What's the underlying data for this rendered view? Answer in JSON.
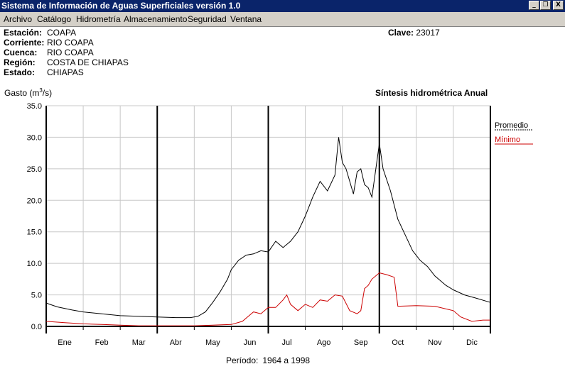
{
  "window": {
    "title": "Sistema de Información de Aguas Superficiales  versión 1.0",
    "minimize": "_",
    "restore": "❐",
    "close": "X"
  },
  "menu": [
    "Archivo",
    "Catálogo",
    "Hidrometría",
    "Almacenamiento",
    "Seguridad",
    "Ventana"
  ],
  "station": {
    "rows": [
      {
        "label": "Estación:",
        "value": "COAPA"
      },
      {
        "label": "Corriente:",
        "value": "RIO COAPA"
      },
      {
        "label": "Cuenca:",
        "value": "RIO COAPA"
      },
      {
        "label": "Región:",
        "value": "COSTA DE CHIAPAS"
      },
      {
        "label": "Estado:",
        "value": "CHIAPAS"
      }
    ],
    "clave_label": "Clave:",
    "clave_value": "23017"
  },
  "periodo": {
    "label": "Período:",
    "value": "1964 a 1998"
  },
  "chart_data": {
    "type": "line",
    "title": "Síntesis hidrométrica   Anual",
    "ylabel_main": "Gasto (m",
    "ylabel_sup": "3",
    "ylabel_end": "/s)",
    "ylim": [
      0,
      35
    ],
    "yticks": [
      "0.0",
      "5.0",
      "10.0",
      "15.0",
      "20.0",
      "25.0",
      "30.0",
      "35.0"
    ],
    "categories": [
      "Ene",
      "Feb",
      "Mar",
      "Abr",
      "May",
      "Jun",
      "Jul",
      "Ago",
      "Sep",
      "Oct",
      "Nov",
      "Dic"
    ],
    "grid": true,
    "legend_position": "right",
    "series": [
      {
        "name": "Promedio",
        "color": "#000000",
        "x": [
          0,
          0.3,
          0.7,
          1,
          1.5,
          2,
          2.5,
          3,
          3.5,
          3.9,
          4.1,
          4.3,
          4.5,
          4.7,
          4.9,
          5,
          5.2,
          5.4,
          5.6,
          5.8,
          6,
          6.2,
          6.4,
          6.6,
          6.8,
          7,
          7.2,
          7.4,
          7.6,
          7.8,
          7.9,
          8.0,
          8.1,
          8.2,
          8.3,
          8.4,
          8.5,
          8.6,
          8.7,
          8.8,
          9,
          9.1,
          9.3,
          9.5,
          9.7,
          9.9,
          10.1,
          10.3,
          10.5,
          10.8,
          11,
          11.3,
          11.6,
          12
        ],
        "values": [
          3.7,
          3.1,
          2.6,
          2.3,
          2.0,
          1.7,
          1.6,
          1.5,
          1.4,
          1.4,
          1.6,
          2.3,
          3.8,
          5.5,
          7.5,
          9.0,
          10.5,
          11.3,
          11.5,
          12.0,
          11.8,
          13.5,
          12.5,
          13.5,
          15.0,
          17.5,
          20.5,
          23.0,
          21.5,
          24.0,
          30.0,
          26.0,
          25.0,
          23.0,
          21.0,
          24.5,
          25.0,
          22.5,
          22.0,
          20.5,
          29.0,
          25.0,
          21.5,
          17.0,
          14.5,
          12.0,
          10.5,
          9.5,
          8.0,
          6.5,
          5.8,
          5.0,
          4.5,
          3.8
        ]
      },
      {
        "name": "Mínimo",
        "color": "#cc0000",
        "x": [
          0,
          0.5,
          1,
          1.5,
          2,
          2.5,
          3,
          3.5,
          4,
          4.5,
          5,
          5.3,
          5.5,
          5.6,
          5.8,
          6,
          6.2,
          6.4,
          6.5,
          6.6,
          6.8,
          7,
          7.2,
          7.4,
          7.6,
          7.8,
          8,
          8.2,
          8.4,
          8.5,
          8.6,
          8.7,
          8.8,
          9,
          9.2,
          9.4,
          9.45,
          9.5,
          10,
          10.5,
          11,
          11.2,
          11.5,
          11.8,
          12
        ],
        "values": [
          0.8,
          0.6,
          0.4,
          0.3,
          0.2,
          0.1,
          0.1,
          0.1,
          0.1,
          0.2,
          0.3,
          0.8,
          1.8,
          2.3,
          2.0,
          3.0,
          3.0,
          4.2,
          5.0,
          3.5,
          2.5,
          3.5,
          3.0,
          4.2,
          4.0,
          5.0,
          4.8,
          2.5,
          2.0,
          2.5,
          6.0,
          6.5,
          7.5,
          8.5,
          8.2,
          7.8,
          5.5,
          3.2,
          3.3,
          3.2,
          2.5,
          1.5,
          0.8,
          1.0,
          1.0
        ]
      }
    ]
  }
}
